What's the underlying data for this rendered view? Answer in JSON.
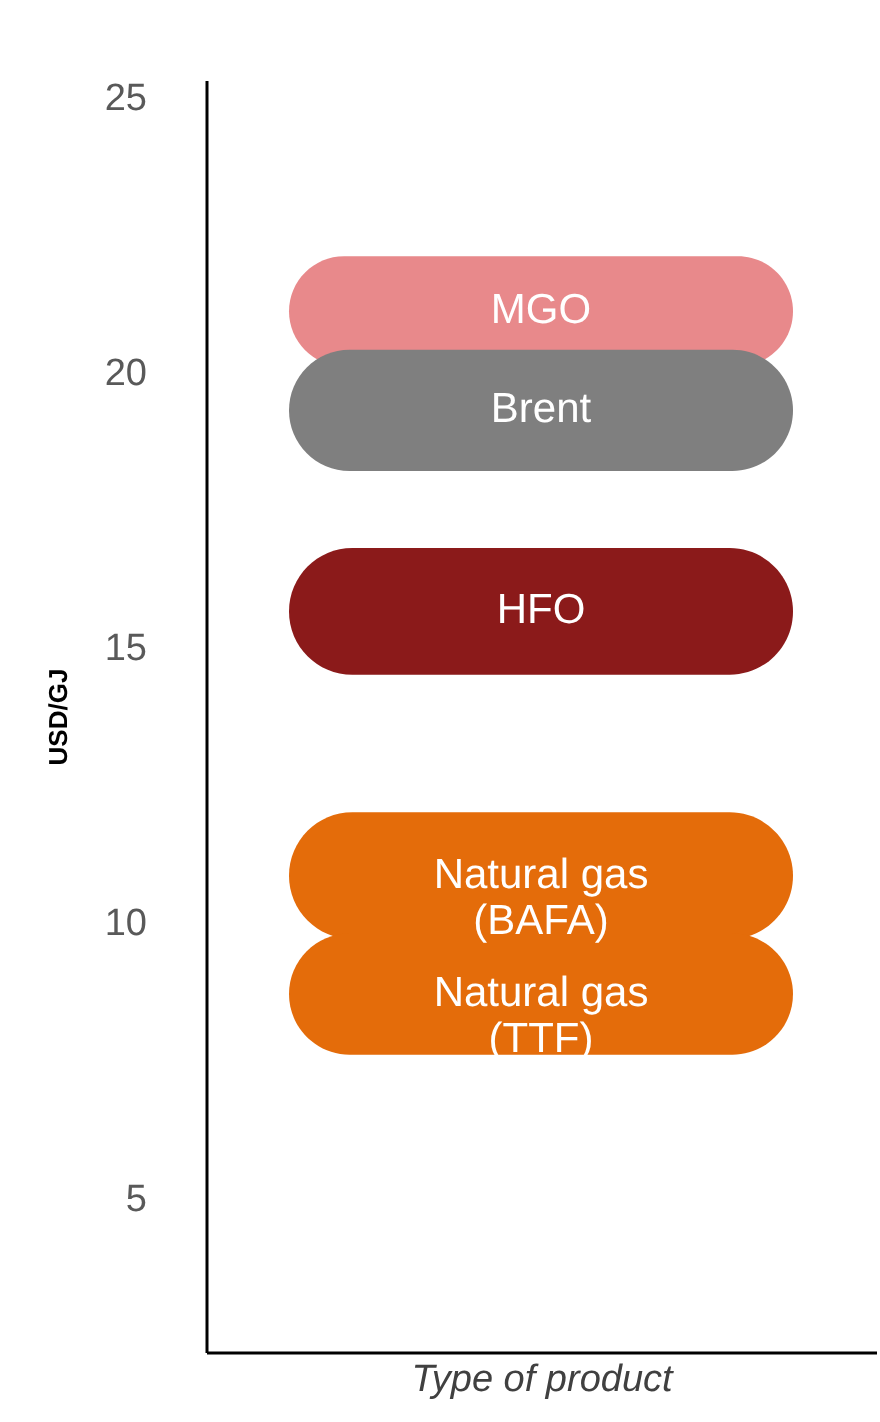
{
  "chart_data": {
    "type": "bar",
    "xlabel": "Type of product",
    "ylabel": "USD/GJ",
    "categories": [
      null
    ],
    "ylim": [
      2.2,
      25.3
    ],
    "yticks": [
      5,
      10,
      15,
      20,
      25
    ],
    "grid": false,
    "legend": false,
    "tick_labels": "y",
    "series": [
      {
        "name": "MGO",
        "color": "#e8898b",
        "values": [
          2.0
        ],
        "base": [
          20.1
        ]
      },
      {
        "name": "Brent",
        "color": "#7f7f7f",
        "values": [
          2.2
        ],
        "base": [
          18.2
        ]
      },
      {
        "name": "HFO",
        "color": "#8b1a1a",
        "values": [
          2.3
        ],
        "base": [
          14.5
        ]
      },
      {
        "name": "Natural gas\n(BAFA)",
        "color": "#e46c0a",
        "values": [
          2.3
        ],
        "base": [
          9.7
        ]
      },
      {
        "name": "Natural gas\n(TTF)",
        "color": "#e46c0a",
        "values": [
          2.2
        ],
        "base": [
          7.6
        ]
      }
    ]
  }
}
